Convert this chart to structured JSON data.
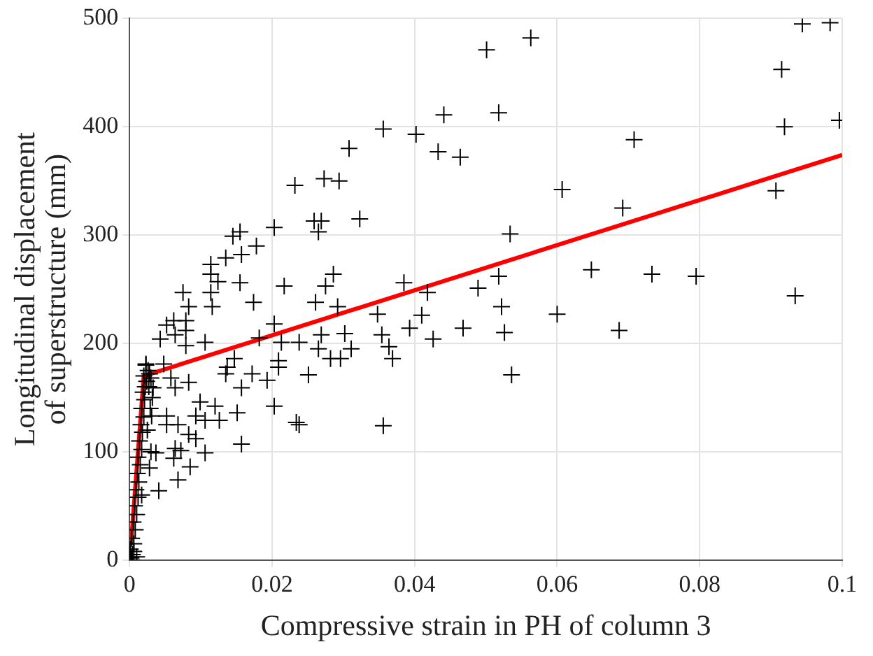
{
  "chart_data": {
    "type": "scatter",
    "xlabel": "Compressive strain in PH of column 3",
    "ylabel": "Longitudinal displacement\nof superstructure (mm)",
    "xlim": [
      0,
      0.1
    ],
    "ylim": [
      0,
      500
    ],
    "xticks": [
      0,
      0.02,
      0.04,
      0.06,
      0.08,
      0.1
    ],
    "yticks": [
      0,
      100,
      200,
      300,
      400,
      500
    ],
    "grid": true,
    "legend": false,
    "series": [
      {
        "marker": "cross",
        "color": "#000000",
        "x": [
          0.0501,
          0.0563,
          0.0441,
          0.0518,
          0.0402,
          0.0433,
          0.0464,
          0.0708,
          0.0607,
          0.0692,
          0.0534,
          0.0907,
          0.0915,
          0.0919,
          0.0944,
          0.0983,
          0.0996,
          0.0934,
          0.0648,
          0.0733,
          0.0795,
          0.06,
          0.0687,
          0.0518,
          0.0489,
          0.0522,
          0.0526,
          0.0536,
          0.0468,
          0.041,
          0.0418,
          0.0385,
          0.0393,
          0.0426,
          0.0356,
          0.0308,
          0.0232,
          0.0273,
          0.0294,
          0.0259,
          0.0269,
          0.0323,
          0.0203,
          0.0265,
          0.0155,
          0.0145,
          0.0178,
          0.0157,
          0.0135,
          0.0114,
          0.0114,
          0.0124,
          0.0155,
          0.0174,
          0.0217,
          0.0286,
          0.0275,
          0.0261,
          0.0292,
          0.0348,
          0.0114,
          0.0116,
          0.0075,
          0.0083,
          0.0203,
          0.0106,
          0.0182,
          0.0213,
          0.0238,
          0.0269,
          0.0302,
          0.0265,
          0.0282,
          0.0296,
          0.0311,
          0.0354,
          0.0369,
          0.0364,
          0.0209,
          0.0209,
          0.0193,
          0.0251,
          0.0172,
          0.0147,
          0.0137,
          0.0135,
          0.0157,
          0.0083,
          0.0064,
          0.0058,
          0.0048,
          0.0023,
          0.0043,
          0.0052,
          0.0062,
          0.0079,
          0.0079,
          0.0079,
          0.0064,
          0.0203,
          0.0234,
          0.0238,
          0.0356,
          0.0099,
          0.0093,
          0.012,
          0.0106,
          0.0126,
          0.0151,
          0.0157,
          0.0068,
          0.0072,
          0.0062,
          0.0106,
          0.0085,
          0.0083,
          0.0093,
          0.0037,
          0.0041,
          0.0068,
          0.0052,
          0.0052,
          0.0064,
          0.0033,
          0.0031,
          0.0017,
          0.0002,
          0.0004,
          0.0001,
          0.0006,
          0.0003,
          0.0008,
          0.0005,
          0.001,
          0.0007,
          0.0012,
          0.0009,
          0.0013,
          0.0011,
          0.0015,
          0.0012,
          0.0017,
          0.0014,
          0.0018,
          0.0016,
          0.002,
          0.0017,
          0.0021,
          0.0019,
          0.0022,
          0.0024,
          0.002,
          0.0026,
          0.0023,
          0.0028,
          0.003,
          0.0027,
          0.0032,
          0.0029,
          0,
          0.0003,
          0.001,
          0.0006,
          0.0025,
          0.003,
          0.0028
        ],
        "values": [
          471,
          482,
          411,
          413,
          393,
          377,
          372,
          388,
          342,
          325,
          301,
          341,
          453,
          400,
          495,
          496,
          406,
          244,
          268,
          264,
          262,
          227,
          212,
          262,
          251,
          234,
          210,
          171,
          214,
          226,
          247,
          256,
          214,
          204,
          398,
          380,
          346,
          352,
          350,
          313,
          313,
          315,
          307,
          303,
          303,
          299,
          290,
          282,
          279,
          273,
          264,
          257,
          256,
          238,
          253,
          264,
          253,
          238,
          234,
          227,
          247,
          234,
          247,
          234,
          218,
          201,
          205,
          201,
          201,
          208,
          209,
          195,
          186,
          186,
          195,
          208,
          186,
          197,
          184,
          178,
          166,
          171,
          172,
          186,
          178,
          172,
          159,
          164,
          159,
          168,
          181,
          181,
          204,
          217,
          221,
          221,
          212,
          198,
          208,
          142,
          127,
          125,
          124,
          146,
          133,
          142,
          129,
          129,
          136,
          107,
          125,
          101,
          94,
          99,
          86,
          116,
          112,
          99,
          64,
          74,
          133,
          125,
          103,
          159,
          133,
          60,
          2,
          5,
          10,
          15,
          20,
          28,
          35,
          42,
          50,
          58,
          65,
          72,
          80,
          88,
          95,
          102,
          110,
          118,
          125,
          132,
          140,
          148,
          155,
          160,
          165,
          170,
          175,
          180,
          172,
          168,
          160,
          150,
          140,
          5,
          0,
          3,
          8,
          120,
          100,
          85
        ]
      },
      {
        "type": "line",
        "marker": "none",
        "color": "#ff0000",
        "x": [
          0.0002,
          0.002,
          0.1
        ],
        "values": [
          14,
          170,
          374
        ]
      }
    ]
  }
}
